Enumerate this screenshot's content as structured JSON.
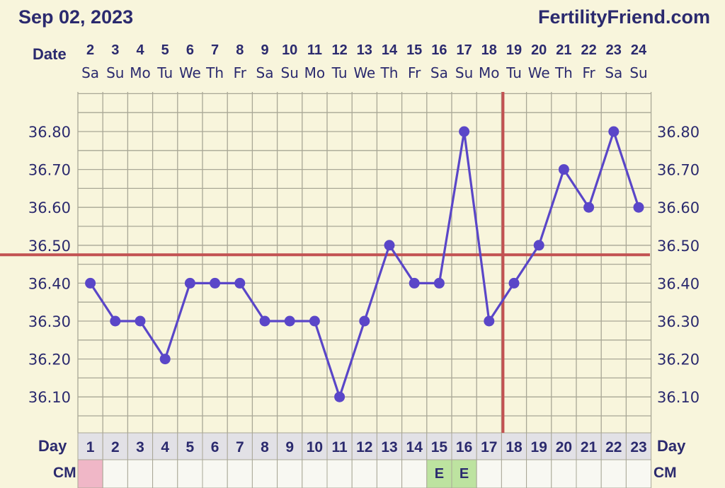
{
  "header": {
    "date": "Sep 02, 2023",
    "site": "FertilityFriend.com",
    "date_row_label": "Date",
    "day_row_label": "Day",
    "cm_row_label": "CM"
  },
  "colors": {
    "background": "#f8f5dc",
    "text": "#2b2a6e",
    "grid": "#a9a796",
    "line": "#5a46c8",
    "coverline": "#c25252",
    "cm_pink": "#f0b7c7",
    "cm_green": "#bde3a0"
  },
  "chart_data": {
    "type": "line",
    "x": [
      2,
      3,
      4,
      5,
      6,
      7,
      8,
      9,
      10,
      11,
      12,
      13,
      14,
      15,
      16,
      17,
      18,
      19,
      20,
      21,
      22,
      23,
      24
    ],
    "x_weekdays": [
      "Sa",
      "Su",
      "Mo",
      "Tu",
      "We",
      "Th",
      "Fr",
      "Sa",
      "Su",
      "Mo",
      "Tu",
      "We",
      "Th",
      "Fr",
      "Sa",
      "Su",
      "Mo",
      "Tu",
      "We",
      "Th",
      "Fr",
      "Sa",
      "Su"
    ],
    "cycle_days": [
      1,
      2,
      3,
      4,
      5,
      6,
      7,
      8,
      9,
      10,
      11,
      12,
      13,
      14,
      15,
      16,
      17,
      18,
      19,
      20,
      21,
      22,
      23
    ],
    "series": [
      {
        "values": [
          36.4,
          36.3,
          36.3,
          36.2,
          36.4,
          36.4,
          36.4,
          36.3,
          36.3,
          36.3,
          36.1,
          36.3,
          36.5,
          36.4,
          36.4,
          36.8,
          36.3,
          36.4,
          36.5,
          36.7,
          36.6,
          36.8,
          36.6
        ]
      }
    ],
    "y_ticks": [
      36.1,
      36.2,
      36.3,
      36.4,
      36.5,
      36.6,
      36.7,
      36.8
    ],
    "y_tick_labels": [
      "36.10",
      "36.20",
      "36.30",
      "36.40",
      "36.50",
      "36.60",
      "36.70",
      "36.80"
    ],
    "coverline_temp": 36.475,
    "ovulation_cycle_day": 18,
    "cm": [
      "",
      "",
      "",
      "",
      "",
      "",
      "",
      "",
      "",
      "",
      "",
      "",
      "",
      "",
      "E",
      "E",
      "",
      "",
      "",
      "",
      "",
      "",
      ""
    ],
    "cm_colors": [
      "pink",
      "",
      "",
      "",
      "",
      "",
      "",
      "",
      "",
      "",
      "",
      "",
      "",
      "",
      "green",
      "green",
      "",
      "",
      "",
      "",
      "",
      "",
      ""
    ],
    "grid": true
  }
}
